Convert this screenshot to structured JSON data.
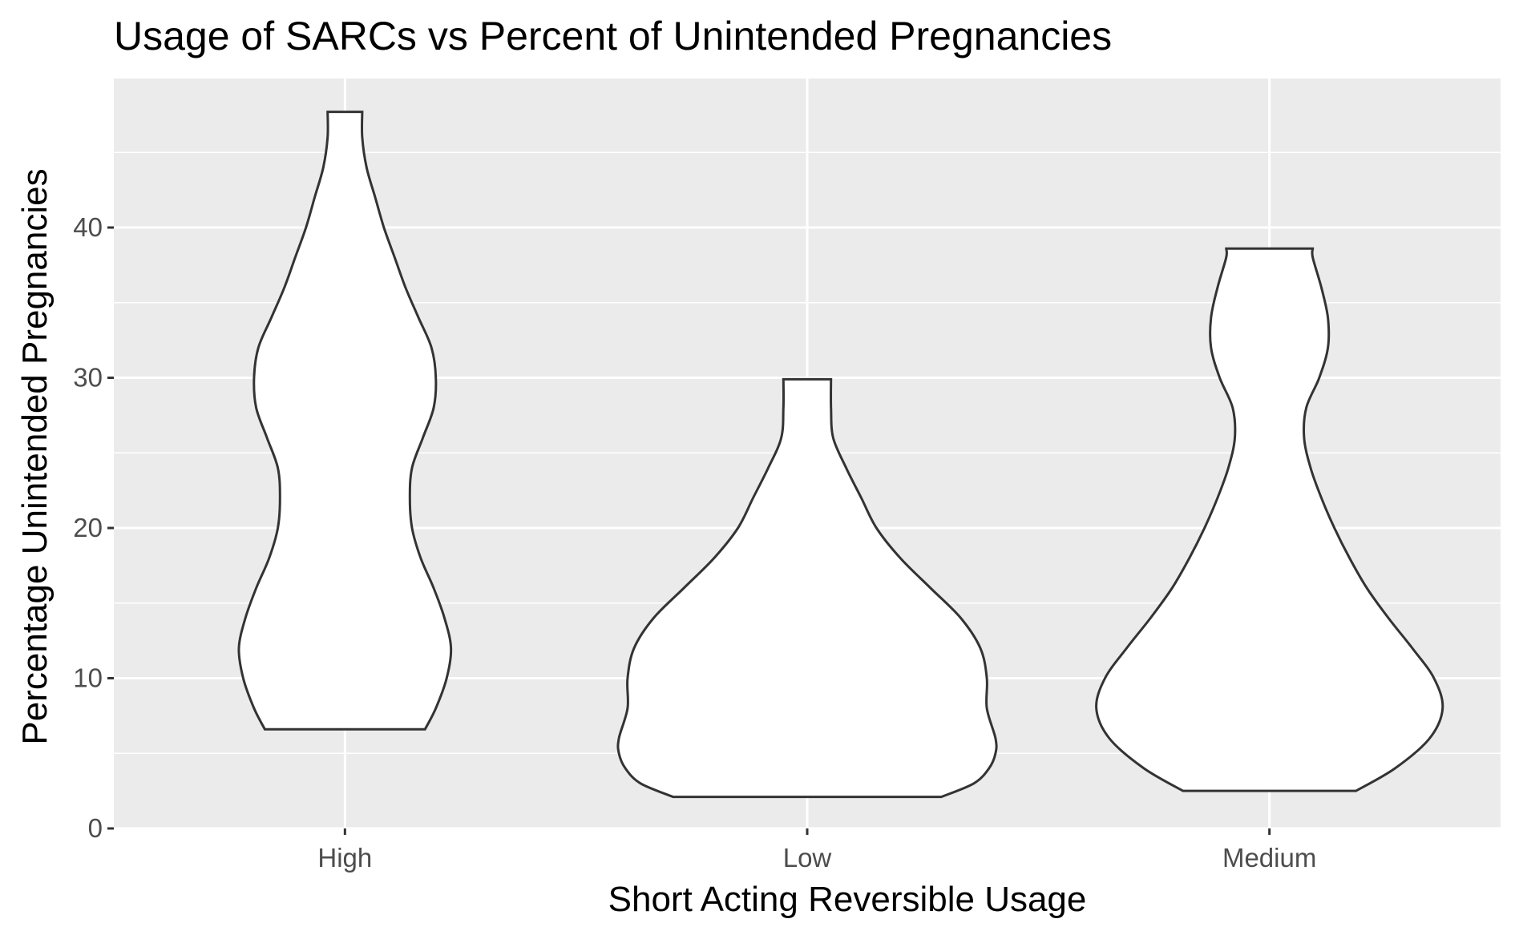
{
  "chart_data": {
    "type": "violin",
    "title": "Usage of SARCs vs Percent of Unintended Pregnancies",
    "xlabel": "Short Acting Reversible Usage",
    "ylabel": "Percentage Unintended Pregnancies",
    "categories": [
      "High",
      "Low",
      "Medium"
    ],
    "ylim": [
      0,
      50
    ],
    "yticks": [
      0,
      10,
      20,
      30,
      40
    ],
    "grid": true,
    "background": "#ebebeb",
    "violins": [
      {
        "category": "High",
        "min": 6.6,
        "max": 47.7,
        "profile": [
          [
            6.6,
            0.37
          ],
          [
            8,
            0.42
          ],
          [
            10,
            0.47
          ],
          [
            12,
            0.49
          ],
          [
            14,
            0.46
          ],
          [
            16,
            0.41
          ],
          [
            18,
            0.35
          ],
          [
            20,
            0.31
          ],
          [
            22,
            0.3
          ],
          [
            24,
            0.31
          ],
          [
            26,
            0.36
          ],
          [
            28,
            0.41
          ],
          [
            30,
            0.42
          ],
          [
            32,
            0.4
          ],
          [
            34,
            0.34
          ],
          [
            36,
            0.28
          ],
          [
            38,
            0.23
          ],
          [
            40,
            0.18
          ],
          [
            42,
            0.14
          ],
          [
            44,
            0.1
          ],
          [
            46,
            0.08
          ],
          [
            47.7,
            0.08
          ]
        ]
      },
      {
        "category": "Low",
        "min": 2.1,
        "max": 29.9,
        "profile": [
          [
            2.1,
            0.62
          ],
          [
            3,
            0.77
          ],
          [
            4,
            0.84
          ],
          [
            5,
            0.87
          ],
          [
            6,
            0.87
          ],
          [
            8,
            0.83
          ],
          [
            10,
            0.83
          ],
          [
            12,
            0.8
          ],
          [
            14,
            0.71
          ],
          [
            16,
            0.57
          ],
          [
            18,
            0.43
          ],
          [
            20,
            0.32
          ],
          [
            22,
            0.25
          ],
          [
            24,
            0.18
          ],
          [
            26,
            0.12
          ],
          [
            28,
            0.11
          ],
          [
            29.9,
            0.11
          ]
        ]
      },
      {
        "category": "Medium",
        "min": 2.5,
        "max": 38.6,
        "profile": [
          [
            2.5,
            0.4
          ],
          [
            4,
            0.58
          ],
          [
            6,
            0.74
          ],
          [
            8,
            0.8
          ],
          [
            10,
            0.76
          ],
          [
            12,
            0.66
          ],
          [
            14,
            0.55
          ],
          [
            16,
            0.45
          ],
          [
            18,
            0.37
          ],
          [
            20,
            0.3
          ],
          [
            22,
            0.24
          ],
          [
            24,
            0.19
          ],
          [
            26,
            0.16
          ],
          [
            28,
            0.17
          ],
          [
            30,
            0.23
          ],
          [
            32,
            0.27
          ],
          [
            34,
            0.27
          ],
          [
            36,
            0.24
          ],
          [
            38,
            0.2
          ],
          [
            38.6,
            0.2
          ]
        ]
      }
    ]
  }
}
